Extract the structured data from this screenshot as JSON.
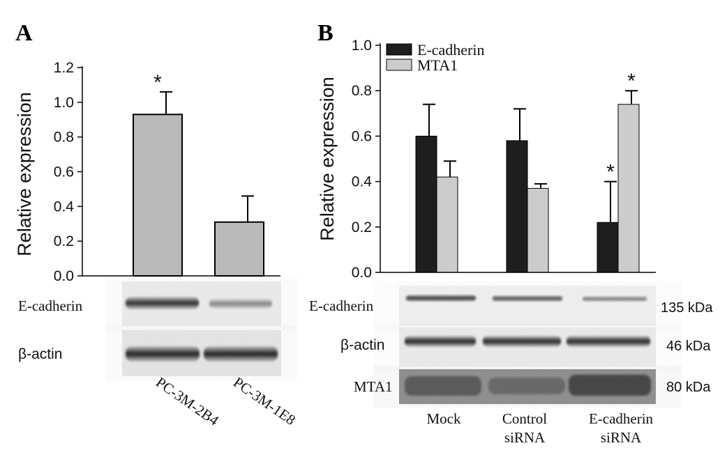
{
  "chart_data": [
    {
      "panel": "A",
      "type": "bar",
      "ylabel": "Relative expression",
      "ylim": [
        0,
        1.2
      ],
      "yticks": [
        "0.0",
        "0.2",
        "0.4",
        "0.6",
        "0.8",
        "1.0",
        "1.2"
      ],
      "categories": [
        "PC-3M-2B4",
        "PC-3M-1E8"
      ],
      "series": [
        {
          "values": [
            0.93,
            0.31
          ],
          "errors": [
            0.13,
            0.15
          ],
          "color": "#b9b9b9"
        }
      ],
      "significance": [
        "*",
        ""
      ],
      "blots": [
        {
          "label": "E-cadherin"
        },
        {
          "label": "β-actin"
        }
      ]
    },
    {
      "panel": "B",
      "type": "bar",
      "ylabel": "Relative expression",
      "ylim": [
        0,
        1.0
      ],
      "yticks": [
        "0.0",
        "0.2",
        "0.4",
        "0.6",
        "0.8",
        "1.0"
      ],
      "categories": [
        "Mock",
        "Control siRNA",
        "E-cadherin siRNA"
      ],
      "category_lines": [
        [
          "Mock"
        ],
        [
          "Control",
          "siRNA"
        ],
        [
          "E-cadherin",
          "siRNA"
        ]
      ],
      "legend_position": "top-left",
      "series": [
        {
          "name": "E-cadherin",
          "values": [
            0.6,
            0.58,
            0.22
          ],
          "errors": [
            0.14,
            0.14,
            0.18
          ],
          "color": "#1e1e1e"
        },
        {
          "name": "MTA1",
          "values": [
            0.42,
            0.37,
            0.74
          ],
          "errors": [
            0.07,
            0.02,
            0.06
          ],
          "color": "#cccccc"
        }
      ],
      "significance": [
        [
          "",
          "",
          "*"
        ],
        [
          "",
          "",
          "*"
        ]
      ],
      "blots": [
        {
          "label": "E-cadherin",
          "kda": "135 kDa"
        },
        {
          "label": "β-actin",
          "kda": "46 kDa"
        },
        {
          "label": "MTA1",
          "kda": "80 kDa"
        }
      ]
    }
  ]
}
